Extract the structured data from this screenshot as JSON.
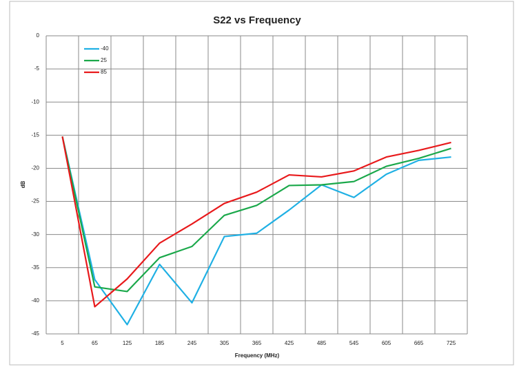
{
  "chart_data": {
    "type": "line",
    "title": "S22  vs Frequency",
    "x_label": "Frequency (MHz)",
    "y_label": "dB",
    "categories": [
      "5",
      "65",
      "125",
      "185",
      "245",
      "305",
      "365",
      "425",
      "485",
      "545",
      "605",
      "665",
      "725"
    ],
    "series": [
      {
        "name": "-40",
        "color": "#1fb0e4",
        "values": [
          -15.2,
          -36.8,
          -43.6,
          -34.5,
          -40.3,
          -30.3,
          -29.8,
          -26.3,
          -22.5,
          -24.4,
          -20.9,
          -18.8,
          -18.3
        ]
      },
      {
        "name": "25",
        "color": "#1aa84a",
        "values": [
          -15.2,
          -37.9,
          -38.6,
          -33.5,
          -31.8,
          -27.1,
          -25.6,
          -22.6,
          -22.5,
          -22.0,
          -19.7,
          -18.5,
          -17.0
        ]
      },
      {
        "name": "85",
        "color": "#e8191b",
        "values": [
          -15.2,
          -40.9,
          -36.7,
          -31.3,
          -28.4,
          -25.3,
          -23.6,
          -21.0,
          -21.3,
          -20.4,
          -18.3,
          -17.3,
          -16.1
        ]
      }
    ],
    "ylim": [
      -45,
      0
    ],
    "yticks": [
      0,
      -5,
      -10,
      -15,
      -20,
      -25,
      -30,
      -35,
      -40,
      -45
    ],
    "grid": true,
    "legend": "upper left"
  }
}
